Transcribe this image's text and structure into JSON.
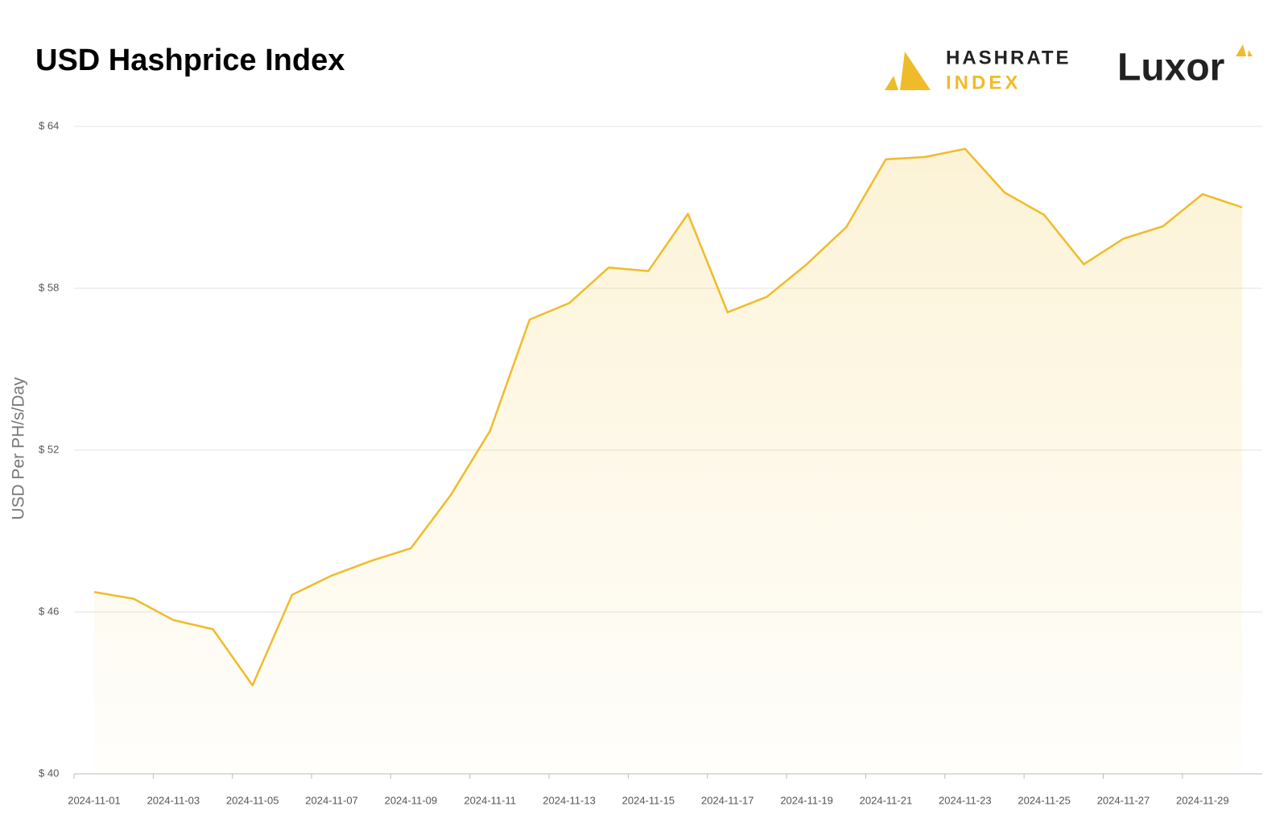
{
  "chart_data": {
    "type": "area",
    "title": "USD Hashprice Index",
    "logo_texts": [
      "HASHRATE",
      "INDEX",
      "Luxor"
    ],
    "y_label": "USD Per PH/s/Day",
    "categories": [
      "2024-11-01",
      null,
      "2024-11-03",
      null,
      "2024-11-05",
      null,
      "2024-11-07",
      null,
      "2024-11-09",
      null,
      "2024-11-11",
      null,
      "2024-11-13",
      null,
      "2024-11-15",
      null,
      "2024-11-17",
      null,
      "2024-11-19",
      null,
      "2024-11-21",
      null,
      "2024-11-23",
      null,
      "2024-11-25",
      null,
      "2024-11-27",
      null,
      "2024-11-29",
      null
    ],
    "values": [
      46.74,
      46.49,
      45.7,
      45.36,
      43.28,
      46.64,
      47.35,
      47.9,
      48.36,
      50.32,
      52.71,
      56.84,
      57.45,
      58.77,
      58.64,
      60.76,
      57.11,
      57.69,
      58.89,
      60.27,
      62.78,
      62.87,
      63.17,
      61.55,
      60.72,
      58.89,
      59.84,
      60.3,
      61.49,
      61.0
    ],
    "color": "#f0bb2b",
    "ylim": [
      40,
      64
    ],
    "yticks": [
      {
        "value": 40,
        "label": "$ 40"
      },
      {
        "value": 46,
        "label": "$ 46"
      },
      {
        "value": 52,
        "label": "$ 52"
      },
      {
        "value": 58,
        "label": "$ 58"
      },
      {
        "value": 64,
        "label": "$ 64"
      }
    ],
    "grid": true
  }
}
